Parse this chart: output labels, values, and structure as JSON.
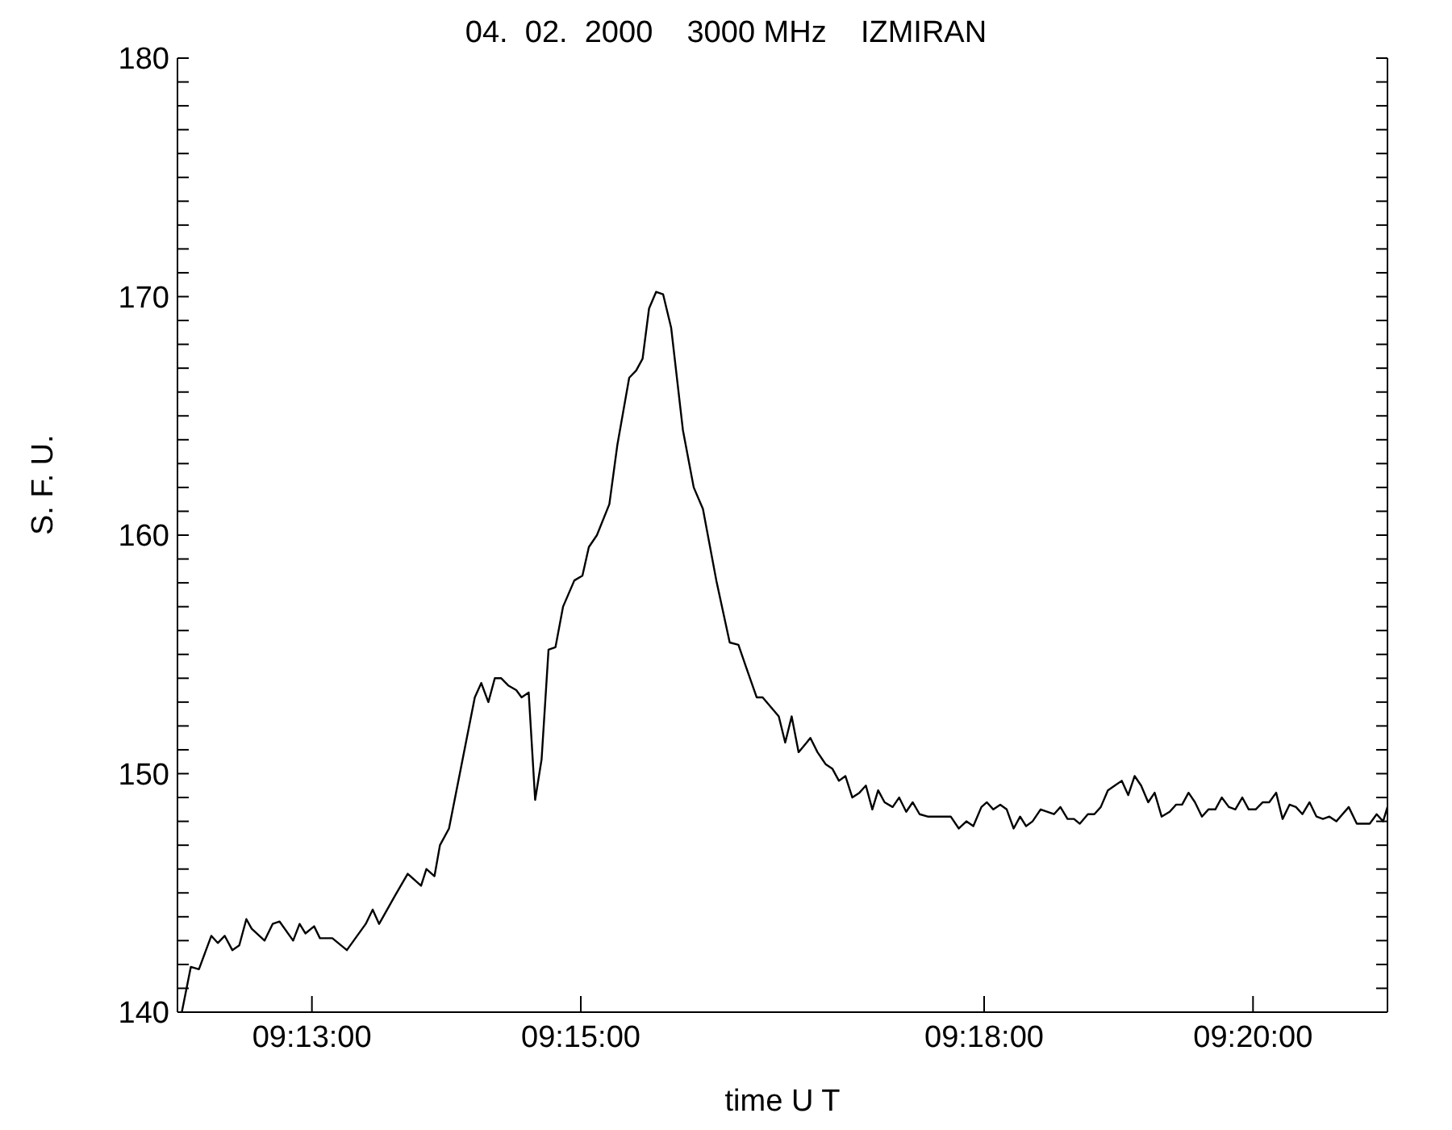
{
  "chart_data": {
    "type": "line",
    "title": "04.  02.  2000    3000 MHz    IZMIRAN",
    "xlabel": "time   U T",
    "ylabel": "S.  F.  U.",
    "x": [
      9.20054,
      9.20166,
      9.20266,
      9.2042,
      9.205,
      9.20586,
      9.2068,
      9.20766,
      9.20854,
      9.2092,
      9.2108,
      9.2118,
      9.21266,
      9.21434,
      9.21514,
      9.21586,
      9.21694,
      9.21766,
      9.2192,
      9.221,
      9.22334,
      9.2242,
      9.225,
      9.227,
      9.22854,
      9.2302,
      9.23086,
      9.23186,
      9.23254,
      9.23366,
      9.235,
      9.23686,
      9.23766,
      9.23854,
      9.23934,
      9.24014,
      9.241,
      9.242,
      9.24266,
      9.24354,
      9.24434,
      9.24514,
      9.246,
      9.24686,
      9.2478,
      9.2492,
      9.2502,
      9.251,
      9.252,
      9.25354,
      9.25454,
      9.256,
      9.25686,
      9.25766,
      9.25846,
      9.25934,
      9.2602,
      9.2612,
      9.26266,
      9.264,
      9.26514,
      9.2668,
      9.26846,
      9.26954,
      9.27046,
      9.2718,
      9.27254,
      9.27454,
      9.27534,
      9.27614,
      9.277,
      9.278,
      9.27846,
      9.27934,
      9.28034,
      9.2812,
      9.282,
      9.2828,
      9.28366,
      9.28454,
      9.28534,
      9.28614,
      9.28686,
      9.28766,
      9.28866,
      9.28946,
      9.29034,
      9.29114,
      9.292,
      9.293,
      9.29586,
      9.29686,
      9.2978,
      9.29866,
      9.29966,
      9.30034,
      9.30114,
      9.302,
      9.3028,
      9.30366,
      9.30446,
      9.3052,
      9.306,
      9.307,
      9.30866,
      9.30946,
      9.31034,
      9.31114,
      9.31186,
      9.31286,
      9.31366,
      9.31446,
      9.31534,
      9.3162,
      9.31706,
      9.31786,
      9.31866,
      9.31946,
      9.32034,
      9.32114,
      9.322,
      9.323,
      9.3238,
      9.32454,
      9.32534,
      9.32614,
      9.327,
      9.3278,
      9.32866,
      9.32946,
      9.33034,
      9.33114,
      9.332,
      9.3328,
      9.33366,
      9.33454,
      9.33534,
      9.3362,
      9.337,
      9.33786,
      9.33866,
      9.33946,
      9.34034,
      9.3412,
      9.342,
      9.3428,
      9.34366,
      9.3452,
      9.3462,
      9.3478,
      9.34866,
      9.34946,
      9.35
    ],
    "series": [
      {
        "color": "#000000",
        "values": [
          140.0,
          141.9,
          141.8,
          143.2,
          142.9,
          143.2,
          142.6,
          142.8,
          143.9,
          143.5,
          143.0,
          143.7,
          143.8,
          143.0,
          143.7,
          143.3,
          143.6,
          143.1,
          143.1,
          142.6,
          143.7,
          144.3,
          143.7,
          144.9,
          145.8,
          145.3,
          146.0,
          145.7,
          147.0,
          147.7,
          150.0,
          153.2,
          153.8,
          153.0,
          154.0,
          154.0,
          153.7,
          153.5,
          153.2,
          153.4,
          148.9,
          150.6,
          155.2,
          155.3,
          157.0,
          158.1,
          158.3,
          159.5,
          160.0,
          161.3,
          163.8,
          166.6,
          166.9,
          167.4,
          169.5,
          170.2,
          170.1,
          168.7,
          164.4,
          162.0,
          161.1,
          158.1,
          155.5,
          155.4,
          154.5,
          153.2,
          153.2,
          152.4,
          151.3,
          152.4,
          150.9,
          151.3,
          151.5,
          150.9,
          150.4,
          150.2,
          149.7,
          149.9,
          149.0,
          149.2,
          149.5,
          148.5,
          149.3,
          148.8,
          148.6,
          149.0,
          148.4,
          148.8,
          148.3,
          148.2,
          148.2,
          147.7,
          148.0,
          147.8,
          148.6,
          148.8,
          148.5,
          148.7,
          148.5,
          147.7,
          148.2,
          147.8,
          148.0,
          148.5,
          148.3,
          148.6,
          148.1,
          148.1,
          147.9,
          148.3,
          148.3,
          148.6,
          149.3,
          149.5,
          149.7,
          149.1,
          149.9,
          149.5,
          148.8,
          149.2,
          148.2,
          148.4,
          148.7,
          148.7,
          149.2,
          148.8,
          148.2,
          148.5,
          148.5,
          149.0,
          148.6,
          148.5,
          149.0,
          148.5,
          148.5,
          148.8,
          148.8,
          149.2,
          148.1,
          148.7,
          148.6,
          148.3,
          148.8,
          148.2,
          148.1,
          148.2,
          148.0,
          148.6,
          147.9,
          147.9,
          148.3,
          148.0,
          148.6
        ]
      }
    ],
    "xlim": [
      9.2,
      9.35
    ],
    "xticks": [
      {
        "value": 9.216667,
        "label": "09:13:00"
      },
      {
        "value": 9.25,
        "label": "09:15:00"
      },
      {
        "value": 9.3,
        "label": "09:18:00"
      },
      {
        "value": 9.333333,
        "label": "09:20:00"
      }
    ],
    "ylim": [
      140,
      180
    ],
    "yticks": [
      140,
      {
        "value": 141,
        "label": null
      },
      {
        "value": 142,
        "label": null
      },
      {
        "value": 143,
        "label": null
      },
      {
        "value": 144,
        "label": null
      },
      {
        "value": 145,
        "label": null
      },
      {
        "value": 146,
        "label": null
      },
      {
        "value": 147,
        "label": null
      },
      {
        "value": 148,
        "label": null
      },
      {
        "value": 149,
        "label": null
      },
      150,
      {
        "value": 151,
        "label": null
      },
      {
        "value": 152,
        "label": null
      },
      {
        "value": 153,
        "label": null
      },
      {
        "value": 154,
        "label": null
      },
      {
        "value": 155,
        "label": null
      },
      {
        "value": 156,
        "label": null
      },
      {
        "value": 157,
        "label": null
      },
      {
        "value": 158,
        "label": null
      },
      {
        "value": 159,
        "label": null
      },
      160,
      {
        "value": 161,
        "label": null
      },
      {
        "value": 162,
        "label": null
      },
      {
        "value": 163,
        "label": null
      },
      {
        "value": 164,
        "label": null
      },
      {
        "value": 165,
        "label": null
      },
      {
        "value": 166,
        "label": null
      },
      {
        "value": 167,
        "label": null
      },
      {
        "value": 168,
        "label": null
      },
      {
        "value": 169,
        "label": null
      },
      170,
      {
        "value": 171,
        "label": null
      },
      {
        "value": 172,
        "label": null
      },
      {
        "value": 173,
        "label": null
      },
      {
        "value": 174,
        "label": null
      },
      {
        "value": 175,
        "label": null
      },
      {
        "value": 176,
        "label": null
      },
      {
        "value": 177,
        "label": null
      },
      {
        "value": 178,
        "label": null
      },
      {
        "value": 179,
        "label": null
      },
      180
    ],
    "grid": false,
    "legend": false,
    "marker": "none",
    "line_style": "solid"
  }
}
